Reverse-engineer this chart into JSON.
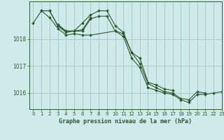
{
  "title": "Graphe pression niveau de la mer (hPa)",
  "background_color": "#ceeaea",
  "line_color": "#2d5a2d",
  "grid_color": "#9dbdbd",
  "xlim": [
    -0.5,
    23
  ],
  "ylim": [
    1015.4,
    1019.4
  ],
  "yticks": [
    1016,
    1017,
    1018
  ],
  "xticks": [
    0,
    1,
    2,
    3,
    4,
    5,
    6,
    7,
    8,
    9,
    10,
    11,
    12,
    13,
    14,
    15,
    16,
    17,
    18,
    19,
    20,
    21,
    22,
    23
  ],
  "series": [
    [
      0,
      1018.6
    ],
    [
      1,
      1019.05
    ],
    [
      2,
      1019.05
    ],
    [
      3,
      1018.5
    ],
    [
      4,
      1018.3
    ],
    [
      5,
      1018.3
    ],
    [
      6,
      1018.3
    ],
    [
      7,
      1018.75
    ],
    [
      8,
      1018.85
    ],
    [
      9,
      1018.85
    ],
    [
      10,
      1018.3
    ],
    [
      11,
      1018.2
    ],
    [
      12,
      1017.5
    ],
    [
      13,
      1017.1
    ],
    [
      14,
      1016.35
    ],
    [
      15,
      1016.2
    ],
    [
      16,
      1016.05
    ],
    [
      17,
      1016.0
    ],
    [
      18,
      1015.8
    ],
    [
      19,
      1015.75
    ],
    [
      20,
      1016.05
    ],
    [
      21,
      1016.0
    ]
  ],
  "series2": [
    [
      1,
      1019.05
    ],
    [
      2,
      1019.05
    ],
    [
      3,
      1018.5
    ],
    [
      4,
      1018.25
    ],
    [
      5,
      1018.3
    ],
    [
      6,
      1018.6
    ],
    [
      7,
      1018.9
    ],
    [
      8,
      1019.05
    ],
    [
      9,
      1019.05
    ],
    [
      10,
      1018.5
    ],
    [
      11,
      1018.25
    ],
    [
      12,
      1017.5
    ],
    [
      13,
      1017.3
    ],
    [
      14,
      1016.4
    ],
    [
      15,
      1016.3
    ],
    [
      16,
      1016.15
    ],
    [
      17,
      1016.1
    ]
  ],
  "series3": [
    [
      3,
      1018.55
    ],
    [
      4,
      1018.3
    ],
    [
      5,
      1018.3
    ],
    [
      6,
      1018.35
    ],
    [
      7,
      1018.8
    ]
  ],
  "series4": [
    [
      1,
      1019.05
    ],
    [
      2,
      1018.8
    ],
    [
      3,
      1018.4
    ],
    [
      4,
      1018.15
    ],
    [
      5,
      1018.2
    ],
    [
      6,
      1018.15
    ],
    [
      7,
      1018.15
    ],
    [
      10,
      1018.3
    ],
    [
      11,
      1018.1
    ],
    [
      12,
      1017.3
    ],
    [
      13,
      1016.95
    ],
    [
      14,
      1016.2
    ],
    [
      15,
      1016.1
    ],
    [
      16,
      1016.0
    ],
    [
      17,
      1015.95
    ],
    [
      18,
      1015.75
    ],
    [
      19,
      1015.65
    ],
    [
      20,
      1015.95
    ],
    [
      21,
      1015.95
    ],
    [
      22,
      1016.0
    ],
    [
      23,
      1016.05
    ]
  ]
}
